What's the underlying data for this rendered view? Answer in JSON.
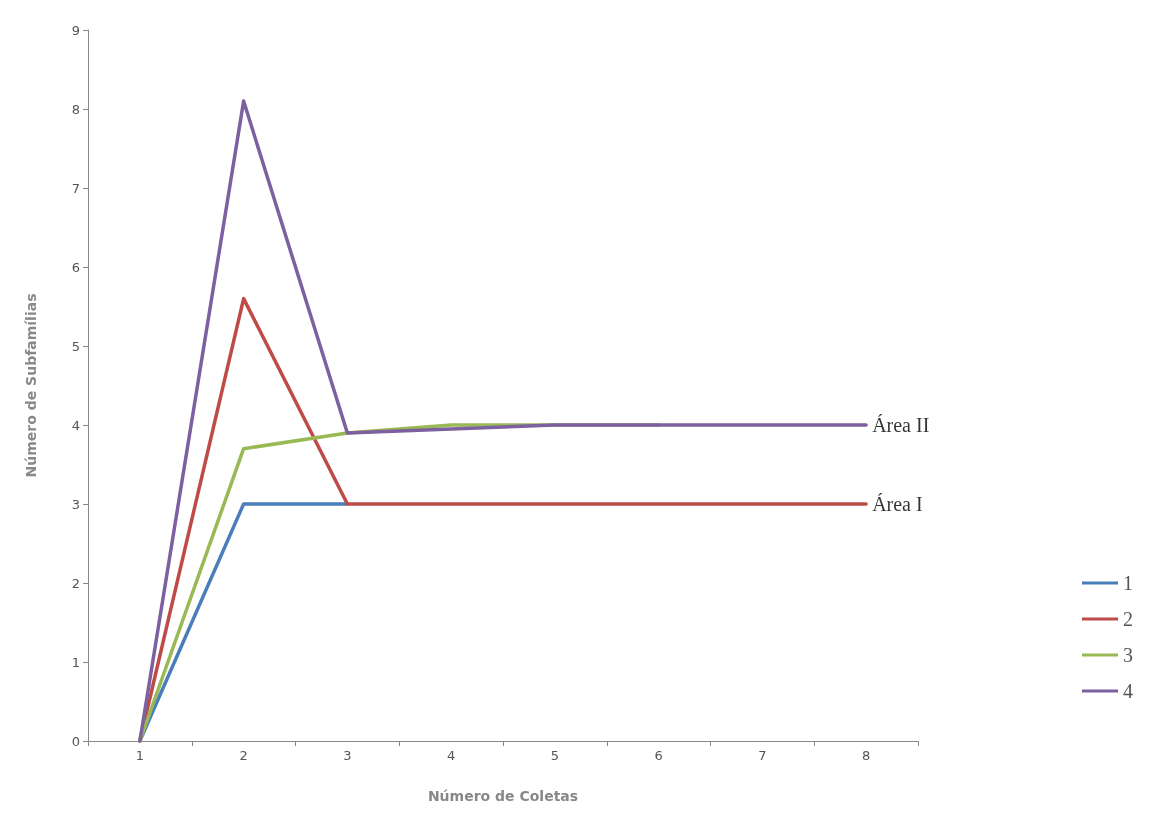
{
  "chart_data": {
    "type": "line",
    "xlabel": "Número de Coletas",
    "ylabel": "Número de Subfamílias",
    "categories": [
      "1",
      "2",
      "3",
      "4",
      "5",
      "6",
      "7",
      "8"
    ],
    "series": [
      {
        "name": "1",
        "color": "#4a7ebb",
        "values": [
          0,
          3,
          3,
          null,
          null,
          null,
          null,
          null
        ]
      },
      {
        "name": "2",
        "color": "#be4b48",
        "values": [
          0,
          5.6,
          3,
          3,
          3,
          3,
          3,
          3
        ]
      },
      {
        "name": "3",
        "color": "#98b954",
        "values": [
          0,
          3.7,
          3.9,
          4,
          4,
          4,
          null,
          null
        ]
      },
      {
        "name": "4",
        "color": "#7d60a0",
        "values": [
          0,
          8.1,
          3.9,
          3.95,
          4,
          4,
          4,
          4
        ]
      }
    ],
    "ylim": [
      0,
      9
    ],
    "yticks": [
      0,
      1,
      2,
      3,
      4,
      5,
      6,
      7,
      8,
      9
    ],
    "grid": false,
    "legend": "right",
    "marker": "none",
    "line_style": "solid",
    "annotations": [
      {
        "text": "Área II",
        "x": "8",
        "y": 4
      },
      {
        "text": "Área I",
        "x": "8",
        "y": 3
      }
    ]
  }
}
